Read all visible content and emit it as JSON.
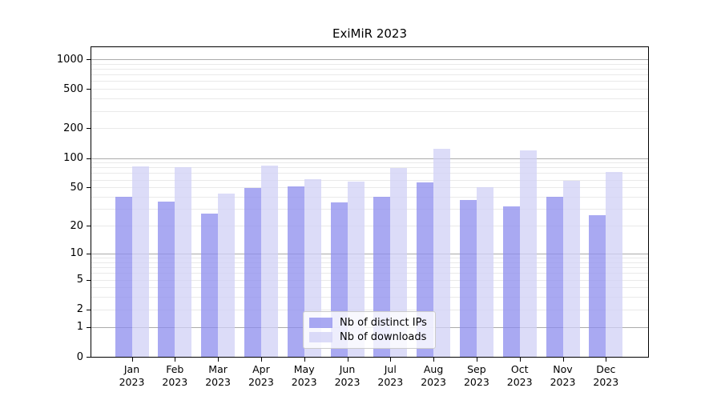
{
  "figure": {
    "title": "ExiMiR 2023"
  },
  "chart_data": {
    "type": "bar",
    "title": "ExiMiR 2023",
    "categories": [
      "Jan 2023",
      "Feb 2023",
      "Mar 2023",
      "Apr 2023",
      "May 2023",
      "Jun 2023",
      "Jul 2023",
      "Aug 2023",
      "Sep 2023",
      "Oct 2023",
      "Nov 2023",
      "Dec 2023"
    ],
    "series": [
      {
        "name": "Nb of distinct IPs",
        "color": "rgba(140,140,238,0.75)",
        "values": [
          40,
          36,
          27,
          49,
          51,
          35,
          40,
          56,
          37,
          32,
          40,
          26
        ]
      },
      {
        "name": "Nb of downloads",
        "color": "rgba(208,208,246,0.75)",
        "values": [
          82,
          80,
          43,
          84,
          61,
          57,
          79,
          125,
          50,
          119,
          59,
          72
        ]
      }
    ],
    "y_axis": {
      "scale": "log1p",
      "range": [
        0,
        1000
      ],
      "tick_values": [
        1000,
        500,
        200,
        100,
        50,
        20,
        10,
        5,
        2,
        1,
        0
      ],
      "tick_labels": [
        "1000",
        "500",
        "200",
        "100",
        "50",
        "20",
        "10",
        "5",
        "2",
        "1",
        "0"
      ],
      "major_gridlines": [
        1,
        10,
        100,
        1000
      ],
      "minor_gridlines": [
        2,
        3,
        4,
        5,
        6,
        7,
        8,
        9,
        20,
        30,
        40,
        50,
        60,
        70,
        80,
        90,
        200,
        300,
        400,
        500,
        600,
        700,
        800,
        900
      ]
    },
    "legend": {
      "position": "inside-bottom-center",
      "entries": [
        "Nb of distinct IPs",
        "Nb of downloads"
      ]
    },
    "colors": {
      "ips_bar": "rgba(140,140,238,0.75)",
      "downloads_bar": "rgba(208,208,246,0.75)",
      "major_grid": "#ababab",
      "minor_grid": "#e9e9e9",
      "spine": "#000000",
      "legend_border": "#cccccc"
    },
    "grid": true
  }
}
